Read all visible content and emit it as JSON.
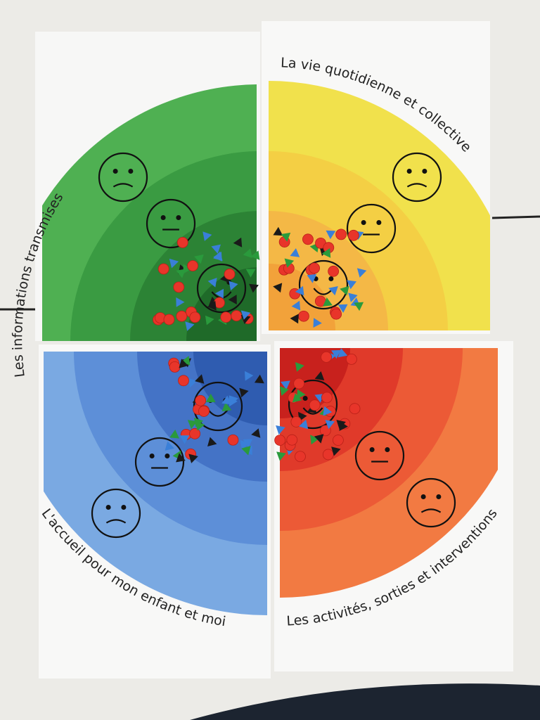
{
  "posters": [
    {
      "title": "Les informations transmises"
    },
    {
      "title": "La vie quotidienne et collective"
    },
    {
      "title": "L'accueil pour mon enfant et moi"
    },
    {
      "title": "Les activités, sorties et interventions"
    }
  ]
}
